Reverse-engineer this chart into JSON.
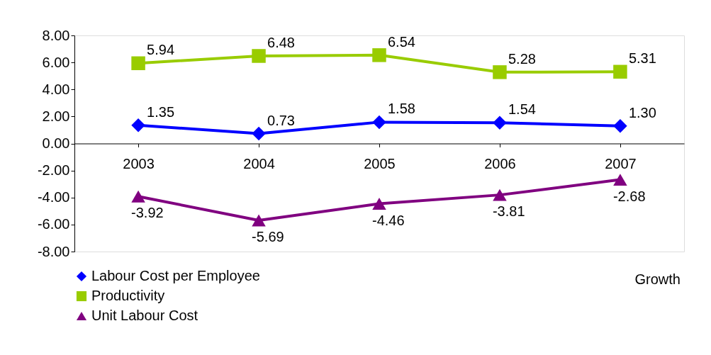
{
  "chart_data": {
    "type": "line",
    "categories": [
      "2003",
      "2004",
      "2005",
      "2006",
      "2007"
    ],
    "series": [
      {
        "name": "Labour Cost per Employee",
        "color": "#0000ff",
        "marker": "diamond",
        "values": [
          1.35,
          0.73,
          1.58,
          1.54,
          1.3
        ],
        "value_labels": [
          "1.35",
          "0.73",
          "1.58",
          "1.54",
          "1.30"
        ]
      },
      {
        "name": "Productivity",
        "color": "#99cc00",
        "marker": "square",
        "values": [
          5.94,
          6.48,
          6.54,
          5.28,
          5.31
        ],
        "value_labels": [
          "5.94",
          "6.48",
          "6.54",
          "5.28",
          "5.31"
        ]
      },
      {
        "name": "Unit Labour Cost",
        "color": "#800080",
        "marker": "triangle",
        "values": [
          -3.92,
          -5.69,
          -4.46,
          -3.81,
          -2.68
        ],
        "value_labels": [
          "-3.92",
          "-5.69",
          "-4.46",
          "-3.81",
          "-2.68"
        ]
      }
    ],
    "ylim": [
      -8,
      8
    ],
    "yticks": [
      {
        "value": -8,
        "label": "-8.00"
      },
      {
        "value": -6,
        "label": "-6.00"
      },
      {
        "value": -4,
        "label": "-4.00"
      },
      {
        "value": -2,
        "label": "-2.00"
      },
      {
        "value": 0,
        "label": "0.00"
      },
      {
        "value": 2,
        "label": "2.00"
      },
      {
        "value": 4,
        "label": "4.00"
      },
      {
        "value": 6,
        "label": "6.00"
      },
      {
        "value": 8,
        "label": "8.00"
      }
    ],
    "grid": false,
    "legend": "bottom left",
    "line_style": "solid",
    "annotations": [
      "Growth"
    ]
  }
}
